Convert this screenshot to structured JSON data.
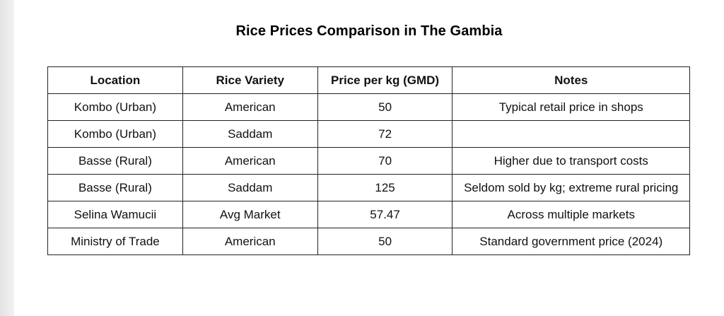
{
  "title": "Rice Prices Comparison in The Gambia",
  "table": {
    "headers": [
      "Location",
      "Rice Variety",
      "Price per kg (GMD)",
      "Notes"
    ],
    "rows": [
      [
        "Kombo (Urban)",
        "American",
        "50",
        "Typical retail price in shops"
      ],
      [
        "Kombo (Urban)",
        "Saddam",
        "72",
        ""
      ],
      [
        "Basse (Rural)",
        "American",
        "70",
        "Higher due to transport costs"
      ],
      [
        "Basse (Rural)",
        "Saddam",
        "125",
        "Seldom sold by kg; extreme rural pricing"
      ],
      [
        "Selina Wamucii",
        "Avg Market",
        "57.47",
        "Across multiple markets"
      ],
      [
        "Ministry of Trade",
        "American",
        "50",
        "Standard government price (2024)"
      ]
    ]
  }
}
